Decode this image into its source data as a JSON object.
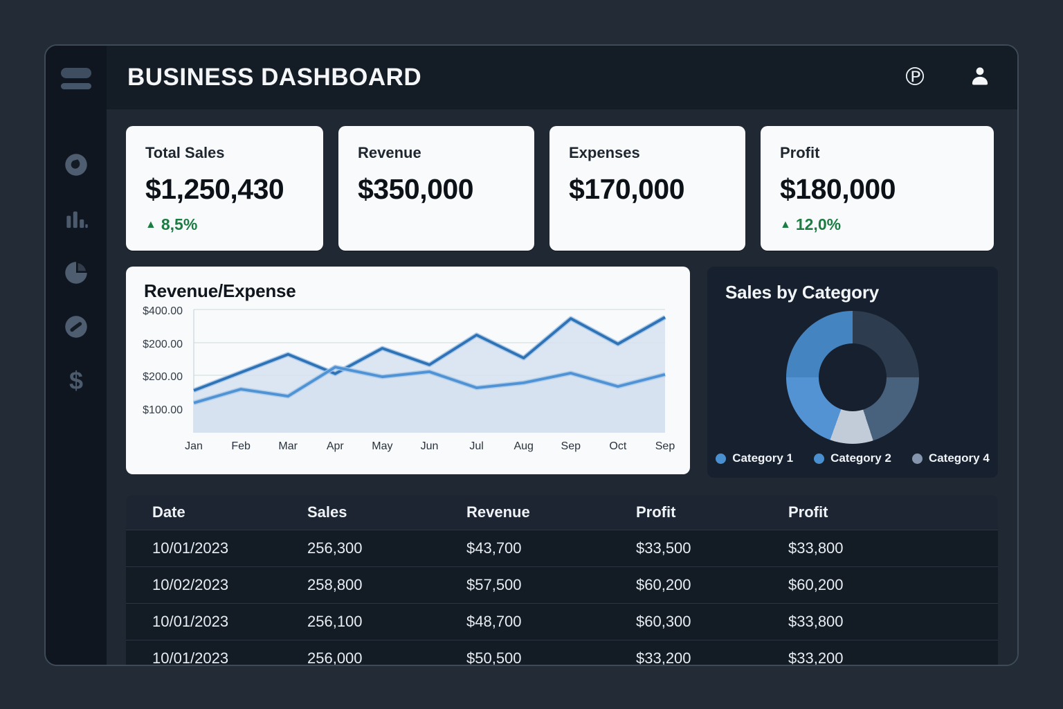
{
  "app": {
    "title": "BUSINESS DASHBOARD"
  },
  "icons": {
    "up_arrow": "▲",
    "pinterest_glyph": "℗"
  },
  "kpis": [
    {
      "label": "Total Sales",
      "value": "$1,250,430",
      "delta": "8,5%",
      "delta_dir": "up"
    },
    {
      "label": "Revenue",
      "value": "$350,000"
    },
    {
      "label": "Expenses",
      "value": "$170,000"
    },
    {
      "label": "Profit",
      "value": "$180,000",
      "delta": "12,0%",
      "delta_dir": "up"
    }
  ],
  "chart_data": [
    {
      "type": "line",
      "title": "Revenue/Expense",
      "x": [
        "Jan",
        "Feb",
        "Mar",
        "Apr",
        "May",
        "Jun",
        "Jul",
        "Aug",
        "Sep",
        "Oct",
        "Sep"
      ],
      "y_tick_labels": [
        "$400.00",
        "$200.00",
        "$200.00",
        "$100.00"
      ],
      "ylim": [
        100,
        400
      ],
      "grid": true,
      "legend_position": "none",
      "area_fill": "rgba(213,225,239,0.8)",
      "series": [
        {
          "name": "series-1",
          "color": "#2e73b6",
          "halo": "#9dc0e4",
          "values": [
            158,
            212,
            266,
            208,
            284,
            235,
            324,
            255,
            373,
            297,
            377
          ]
        },
        {
          "name": "series-2",
          "color": "#4f93d4",
          "halo": "#a8c8e8",
          "values": [
            121,
            162,
            141,
            228,
            199,
            214,
            166,
            181,
            210,
            170,
            206
          ]
        }
      ]
    },
    {
      "type": "donut",
      "title": "Sales by Category",
      "segments": [
        {
          "pct": 25,
          "color": "#2d3c4e"
        },
        {
          "pct": 20,
          "color": "#48617d"
        },
        {
          "pct": 10.5,
          "color": "#c2cbd8"
        },
        {
          "pct": 19.5,
          "color": "#5493d3"
        },
        {
          "pct": 25,
          "color": "#4484c1"
        }
      ],
      "legend": [
        {
          "label": "Category 1",
          "color": "#4a90d0"
        },
        {
          "label": "Category 2",
          "color": "#4a90d0"
        },
        {
          "label": "Category 4",
          "color": "#8495ad"
        }
      ]
    }
  ],
  "table": {
    "headers": [
      "Date",
      "Sales",
      "Revenue",
      "Profit",
      "Profit"
    ],
    "rows": [
      [
        "10/01/2023",
        "256,300",
        "$43,700",
        "$33,500",
        "$33,800"
      ],
      [
        "10/02/2023",
        "258,800",
        "$57,500",
        "$60,200",
        "$60,200"
      ],
      [
        "10/01/2023",
        "256,100",
        "$48,700",
        "$60,300",
        "$33,800"
      ],
      [
        "10/01/2023",
        "256,000",
        "$50,500",
        "$33,200",
        "$33,200"
      ]
    ]
  },
  "colors": {
    "page_bg": "#232c36",
    "window_bg": "#151d27",
    "sidebar_bg": "#10161f",
    "header_bg": "#141c26",
    "content_bg": "#1f2833",
    "card_bg": "#f8fafc",
    "dark_card_bg": "#16202e",
    "positive_green": "#1b7d42",
    "accent_blue": "#2e73b6"
  }
}
